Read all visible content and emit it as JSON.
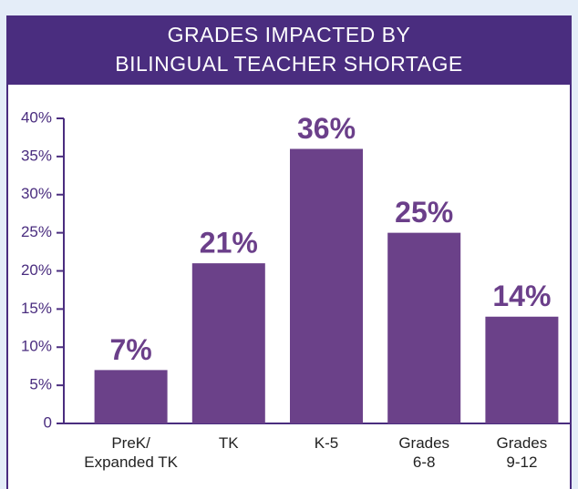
{
  "chart_data": {
    "type": "bar",
    "title": [
      "GRADES IMPACTED BY",
      "BILINGUAL TEACHER SHORTAGE"
    ],
    "categories": [
      [
        "PreK/",
        "Expanded TK"
      ],
      [
        "TK"
      ],
      [
        "K-5"
      ],
      [
        "Grades",
        "6-8"
      ],
      [
        "Grades",
        "9-12"
      ]
    ],
    "values": [
      7,
      21,
      36,
      25,
      14
    ],
    "value_labels": [
      "7%",
      "21%",
      "36%",
      "25%",
      "14%"
    ],
    "color": "#6b4189",
    "ylim": [
      0,
      40
    ],
    "yticks": [
      0,
      {
        "value": 5,
        "label": "5%"
      },
      {
        "value": 10,
        "label": "10%"
      },
      {
        "value": 15,
        "label": "15%"
      },
      {
        "value": 20,
        "label": "20%"
      },
      {
        "value": 25,
        "label": "25%"
      },
      {
        "value": 30,
        "label": "30%"
      },
      {
        "value": 35,
        "label": "35%"
      },
      {
        "value": 40,
        "label": "40%"
      }
    ]
  }
}
